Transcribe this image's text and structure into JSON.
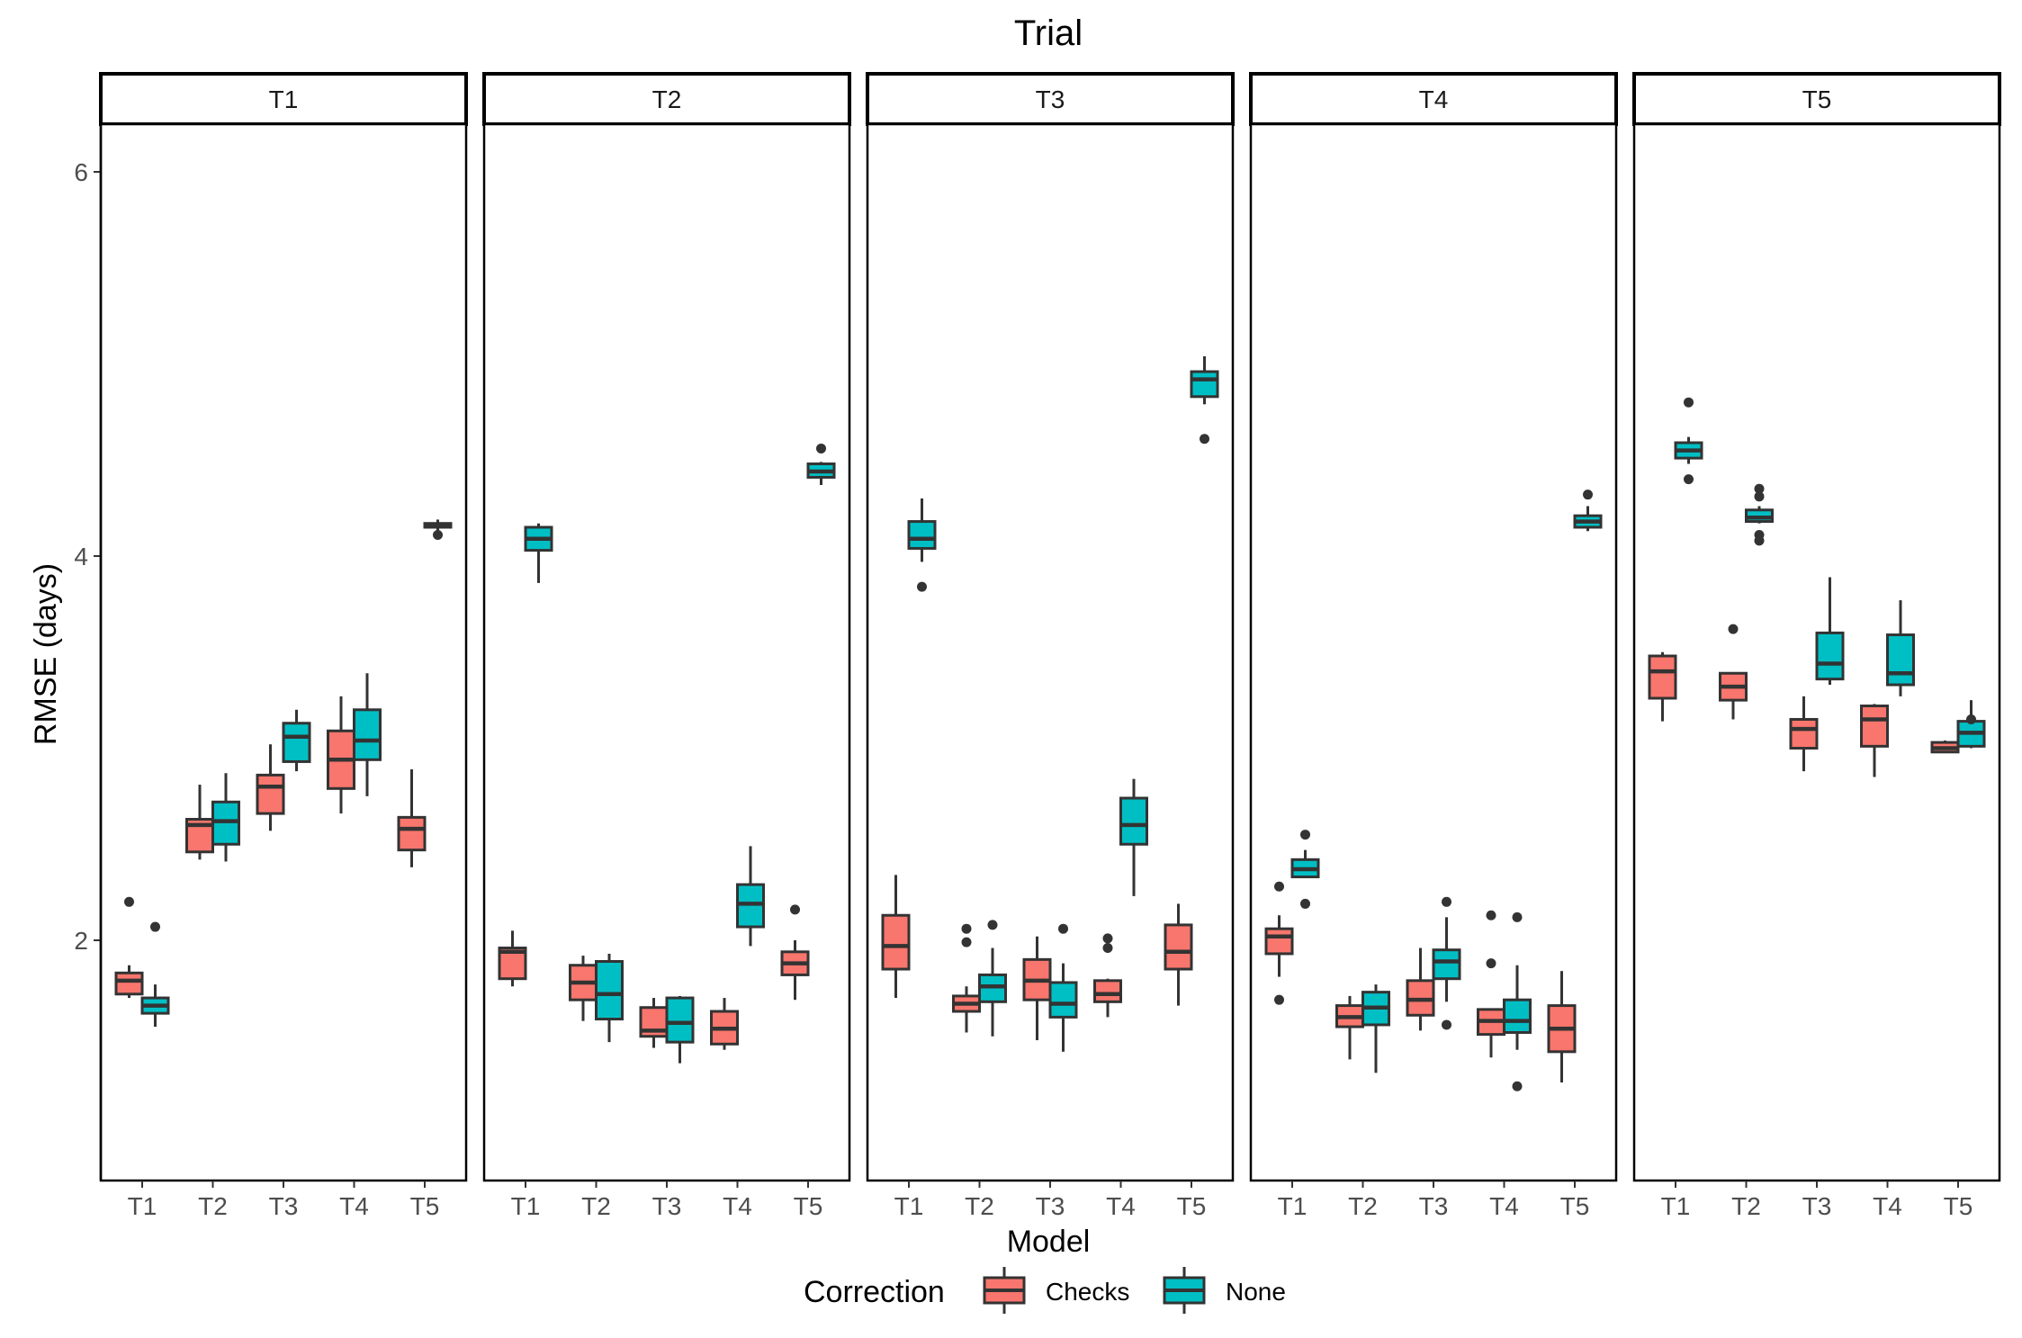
{
  "chart_data": {
    "type": "boxplot",
    "title": "Trial",
    "xlabel": "Model",
    "ylabel": "RMSE (days)",
    "ylim": [
      0.75,
      6.3
    ],
    "yticks": [
      2,
      4,
      6
    ],
    "facets": [
      "T1",
      "T2",
      "T3",
      "T4",
      "T5"
    ],
    "categories": [
      "T1",
      "T2",
      "T3",
      "T4",
      "T5"
    ],
    "legend": {
      "title": "Correction",
      "position": "bottom",
      "entries": [
        {
          "name": "Checks",
          "color": "#F8766D"
        },
        {
          "name": "None",
          "color": "#00BFC4"
        }
      ]
    },
    "panels": [
      {
        "facet": "T1",
        "boxes": [
          {
            "model": "T1",
            "correction": "Checks",
            "min": 1.7,
            "q1": 1.72,
            "median": 1.79,
            "q3": 1.83,
            "max": 1.87,
            "outliers": [
              2.2
            ]
          },
          {
            "model": "T1",
            "correction": "None",
            "min": 1.55,
            "q1": 1.62,
            "median": 1.66,
            "q3": 1.7,
            "max": 1.77,
            "outliers": [
              2.07
            ]
          },
          {
            "model": "T2",
            "correction": "Checks",
            "min": 2.42,
            "q1": 2.46,
            "median": 2.6,
            "q3": 2.63,
            "max": 2.81,
            "outliers": []
          },
          {
            "model": "T2",
            "correction": "None",
            "min": 2.41,
            "q1": 2.5,
            "median": 2.62,
            "q3": 2.72,
            "max": 2.87,
            "outliers": []
          },
          {
            "model": "T3",
            "correction": "Checks",
            "min": 2.57,
            "q1": 2.66,
            "median": 2.8,
            "q3": 2.86,
            "max": 3.02,
            "outliers": []
          },
          {
            "model": "T3",
            "correction": "None",
            "min": 2.88,
            "q1": 2.93,
            "median": 3.06,
            "q3": 3.13,
            "max": 3.2,
            "outliers": []
          },
          {
            "model": "T4",
            "correction": "Checks",
            "min": 2.66,
            "q1": 2.79,
            "median": 2.94,
            "q3": 3.09,
            "max": 3.27,
            "outliers": []
          },
          {
            "model": "T4",
            "correction": "None",
            "min": 2.75,
            "q1": 2.94,
            "median": 3.04,
            "q3": 3.2,
            "max": 3.39,
            "outliers": []
          },
          {
            "model": "T5",
            "correction": "Checks",
            "min": 2.38,
            "q1": 2.47,
            "median": 2.58,
            "q3": 2.64,
            "max": 2.89,
            "outliers": []
          },
          {
            "model": "T5",
            "correction": "None",
            "min": 4.13,
            "q1": 4.15,
            "median": 4.16,
            "q3": 4.17,
            "max": 4.19,
            "outliers": [
              4.11
            ]
          }
        ]
      },
      {
        "facet": "T2",
        "boxes": [
          {
            "model": "T1",
            "correction": "Checks",
            "min": 1.76,
            "q1": 1.8,
            "median": 1.94,
            "q3": 1.96,
            "max": 2.05,
            "outliers": []
          },
          {
            "model": "T1",
            "correction": "None",
            "min": 3.86,
            "q1": 4.03,
            "median": 4.09,
            "q3": 4.15,
            "max": 4.17,
            "outliers": []
          },
          {
            "model": "T2",
            "correction": "Checks",
            "min": 1.58,
            "q1": 1.69,
            "median": 1.78,
            "q3": 1.87,
            "max": 1.92,
            "outliers": []
          },
          {
            "model": "T2",
            "correction": "None",
            "min": 1.47,
            "q1": 1.59,
            "median": 1.72,
            "q3": 1.89,
            "max": 1.93,
            "outliers": []
          },
          {
            "model": "T3",
            "correction": "Checks",
            "min": 1.44,
            "q1": 1.5,
            "median": 1.53,
            "q3": 1.65,
            "max": 1.7,
            "outliers": []
          },
          {
            "model": "T3",
            "correction": "None",
            "min": 1.36,
            "q1": 1.47,
            "median": 1.57,
            "q3": 1.7,
            "max": 1.71,
            "outliers": []
          },
          {
            "model": "T4",
            "correction": "Checks",
            "min": 1.43,
            "q1": 1.46,
            "median": 1.54,
            "q3": 1.63,
            "max": 1.7,
            "outliers": []
          },
          {
            "model": "T4",
            "correction": "None",
            "min": 1.97,
            "q1": 2.07,
            "median": 2.19,
            "q3": 2.29,
            "max": 2.49,
            "outliers": []
          },
          {
            "model": "T5",
            "correction": "Checks",
            "min": 1.69,
            "q1": 1.82,
            "median": 1.88,
            "q3": 1.94,
            "max": 2.0,
            "outliers": [
              2.16
            ]
          },
          {
            "model": "T5",
            "correction": "None",
            "min": 4.37,
            "q1": 4.41,
            "median": 4.44,
            "q3": 4.48,
            "max": 4.49,
            "outliers": [
              4.56
            ]
          }
        ]
      },
      {
        "facet": "T3",
        "boxes": [
          {
            "model": "T1",
            "correction": "Checks",
            "min": 1.7,
            "q1": 1.85,
            "median": 1.97,
            "q3": 2.13,
            "max": 2.34,
            "outliers": []
          },
          {
            "model": "T1",
            "correction": "None",
            "min": 3.97,
            "q1": 4.04,
            "median": 4.09,
            "q3": 4.18,
            "max": 4.3,
            "outliers": [
              3.84
            ]
          },
          {
            "model": "T2",
            "correction": "Checks",
            "min": 1.52,
            "q1": 1.63,
            "median": 1.67,
            "q3": 1.71,
            "max": 1.76,
            "outliers": [
              1.99,
              2.06
            ]
          },
          {
            "model": "T2",
            "correction": "None",
            "min": 1.5,
            "q1": 1.68,
            "median": 1.76,
            "q3": 1.82,
            "max": 1.96,
            "outliers": [
              2.08
            ]
          },
          {
            "model": "T3",
            "correction": "Checks",
            "min": 1.48,
            "q1": 1.69,
            "median": 1.79,
            "q3": 1.9,
            "max": 2.02,
            "outliers": []
          },
          {
            "model": "T3",
            "correction": "None",
            "min": 1.42,
            "q1": 1.6,
            "median": 1.67,
            "q3": 1.78,
            "max": 1.88,
            "outliers": [
              2.06
            ]
          },
          {
            "model": "T4",
            "correction": "Checks",
            "min": 1.6,
            "q1": 1.68,
            "median": 1.72,
            "q3": 1.79,
            "max": 1.8,
            "outliers": [
              1.96,
              2.01
            ]
          },
          {
            "model": "T4",
            "correction": "None",
            "min": 2.23,
            "q1": 2.5,
            "median": 2.6,
            "q3": 2.74,
            "max": 2.84,
            "outliers": []
          },
          {
            "model": "T5",
            "correction": "Checks",
            "min": 1.66,
            "q1": 1.85,
            "median": 1.94,
            "q3": 2.08,
            "max": 2.19,
            "outliers": []
          },
          {
            "model": "T5",
            "correction": "None",
            "min": 4.79,
            "q1": 4.83,
            "median": 4.92,
            "q3": 4.96,
            "max": 5.04,
            "outliers": [
              4.61
            ]
          }
        ]
      },
      {
        "facet": "T4",
        "boxes": [
          {
            "model": "T1",
            "correction": "Checks",
            "min": 1.81,
            "q1": 1.93,
            "median": 2.02,
            "q3": 2.06,
            "max": 2.13,
            "outliers": [
              1.69,
              2.28
            ]
          },
          {
            "model": "T1",
            "correction": "None",
            "min": 2.33,
            "q1": 2.33,
            "median": 2.37,
            "q3": 2.42,
            "max": 2.47,
            "outliers": [
              2.55,
              2.19
            ]
          },
          {
            "model": "T2",
            "correction": "Checks",
            "min": 1.38,
            "q1": 1.55,
            "median": 1.6,
            "q3": 1.66,
            "max": 1.71,
            "outliers": []
          },
          {
            "model": "T2",
            "correction": "None",
            "min": 1.31,
            "q1": 1.56,
            "median": 1.65,
            "q3": 1.73,
            "max": 1.77,
            "outliers": []
          },
          {
            "model": "T3",
            "correction": "Checks",
            "min": 1.53,
            "q1": 1.61,
            "median": 1.69,
            "q3": 1.79,
            "max": 1.96,
            "outliers": []
          },
          {
            "model": "T3",
            "correction": "None",
            "min": 1.68,
            "q1": 1.8,
            "median": 1.89,
            "q3": 1.95,
            "max": 2.12,
            "outliers": [
              1.56,
              2.2
            ]
          },
          {
            "model": "T4",
            "correction": "Checks",
            "min": 1.39,
            "q1": 1.51,
            "median": 1.58,
            "q3": 1.64,
            "max": 1.64,
            "outliers": [
              1.88,
              2.13
            ]
          },
          {
            "model": "T4",
            "correction": "None",
            "min": 1.43,
            "q1": 1.52,
            "median": 1.58,
            "q3": 1.69,
            "max": 1.87,
            "outliers": [
              1.24,
              2.12
            ]
          },
          {
            "model": "T5",
            "correction": "Checks",
            "min": 1.26,
            "q1": 1.42,
            "median": 1.54,
            "q3": 1.66,
            "max": 1.84,
            "outliers": []
          },
          {
            "model": "T5",
            "correction": "None",
            "min": 4.13,
            "q1": 4.15,
            "median": 4.18,
            "q3": 4.21,
            "max": 4.26,
            "outliers": [
              4.32
            ]
          }
        ]
      },
      {
        "facet": "T5",
        "boxes": [
          {
            "model": "T1",
            "correction": "Checks",
            "min": 3.14,
            "q1": 3.26,
            "median": 3.4,
            "q3": 3.48,
            "max": 3.5,
            "outliers": []
          },
          {
            "model": "T1",
            "correction": "None",
            "min": 4.48,
            "q1": 4.51,
            "median": 4.55,
            "q3": 4.59,
            "max": 4.62,
            "outliers": [
              4.8,
              4.4
            ]
          },
          {
            "model": "T2",
            "correction": "Checks",
            "min": 3.15,
            "q1": 3.25,
            "median": 3.32,
            "q3": 3.39,
            "max": 3.39,
            "outliers": [
              3.62
            ]
          },
          {
            "model": "T2",
            "correction": "None",
            "min": 4.17,
            "q1": 4.18,
            "median": 4.2,
            "q3": 4.24,
            "max": 4.26,
            "outliers": [
              4.35,
              4.31,
              4.11,
              4.08
            ]
          },
          {
            "model": "T3",
            "correction": "Checks",
            "min": 2.88,
            "q1": 3.0,
            "median": 3.1,
            "q3": 3.15,
            "max": 3.27,
            "outliers": []
          },
          {
            "model": "T3",
            "correction": "None",
            "min": 3.33,
            "q1": 3.36,
            "median": 3.44,
            "q3": 3.6,
            "max": 3.89,
            "outliers": []
          },
          {
            "model": "T4",
            "correction": "Checks",
            "min": 2.85,
            "q1": 3.01,
            "median": 3.15,
            "q3": 3.22,
            "max": 3.23,
            "outliers": []
          },
          {
            "model": "T4",
            "correction": "None",
            "min": 3.27,
            "q1": 3.33,
            "median": 3.39,
            "q3": 3.59,
            "max": 3.77,
            "outliers": []
          },
          {
            "model": "T5",
            "correction": "Checks",
            "min": 2.98,
            "q1": 2.98,
            "median": 3.0,
            "q3": 3.03,
            "max": 3.04,
            "outliers": []
          },
          {
            "model": "T5",
            "correction": "None",
            "min": 3.0,
            "q1": 3.01,
            "median": 3.08,
            "q3": 3.14,
            "max": 3.25,
            "outliers": [
              3.15
            ]
          }
        ]
      }
    ]
  }
}
